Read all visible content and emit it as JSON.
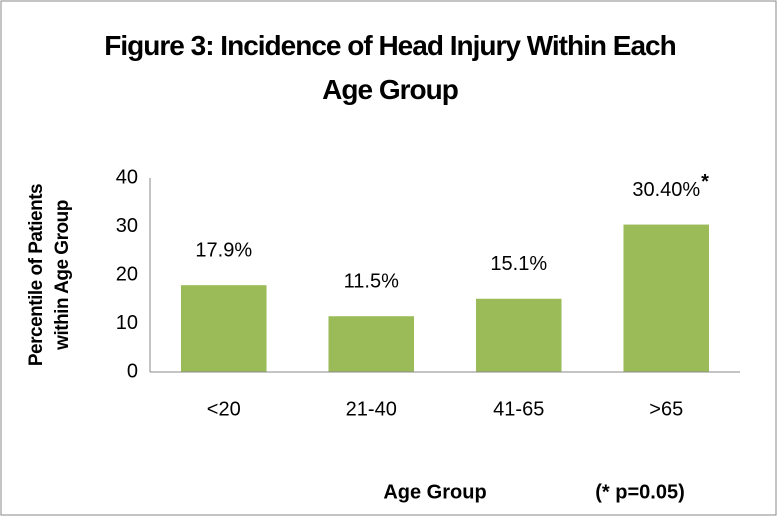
{
  "chart_data": {
    "type": "bar",
    "title": "Figure 3: Incidence of Head Injury Within Each Age Group",
    "y_label": "Percentile of Patients within Age Group",
    "x_label": "Age Group",
    "footnote": "(* p=0.05)",
    "annotation": "*",
    "categories": [
      "<20",
      "21-40",
      "41-65",
      ">65"
    ],
    "values": [
      17.9,
      11.5,
      15.1,
      30.4
    ],
    "value_labels": [
      "17.9%",
      "11.5%",
      "15.1%",
      "30.40%"
    ],
    "color": "#9bbb59",
    "ylim": [
      0,
      40
    ],
    "yticks": [
      0,
      10,
      20,
      30,
      40
    ],
    "grid": false
  }
}
